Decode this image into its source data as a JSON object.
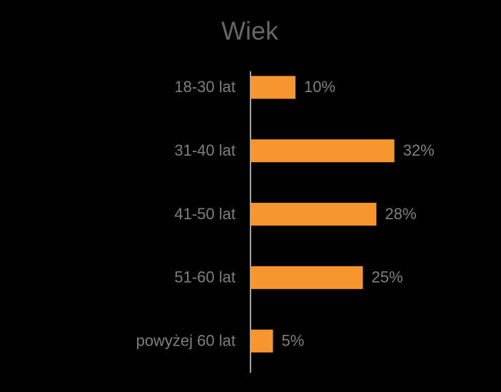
{
  "chart_data": {
    "type": "bar",
    "orientation": "horizontal",
    "title": "Wiek",
    "categories": [
      "18-30 lat",
      "31-40 lat",
      "41-50 lat",
      "51-60 lat",
      "powyżej 60 lat"
    ],
    "values": [
      10,
      32,
      28,
      25,
      5
    ],
    "value_labels": [
      "10%",
      "32%",
      "28%",
      "25%",
      "5%"
    ],
    "color": "#f7962e"
  }
}
